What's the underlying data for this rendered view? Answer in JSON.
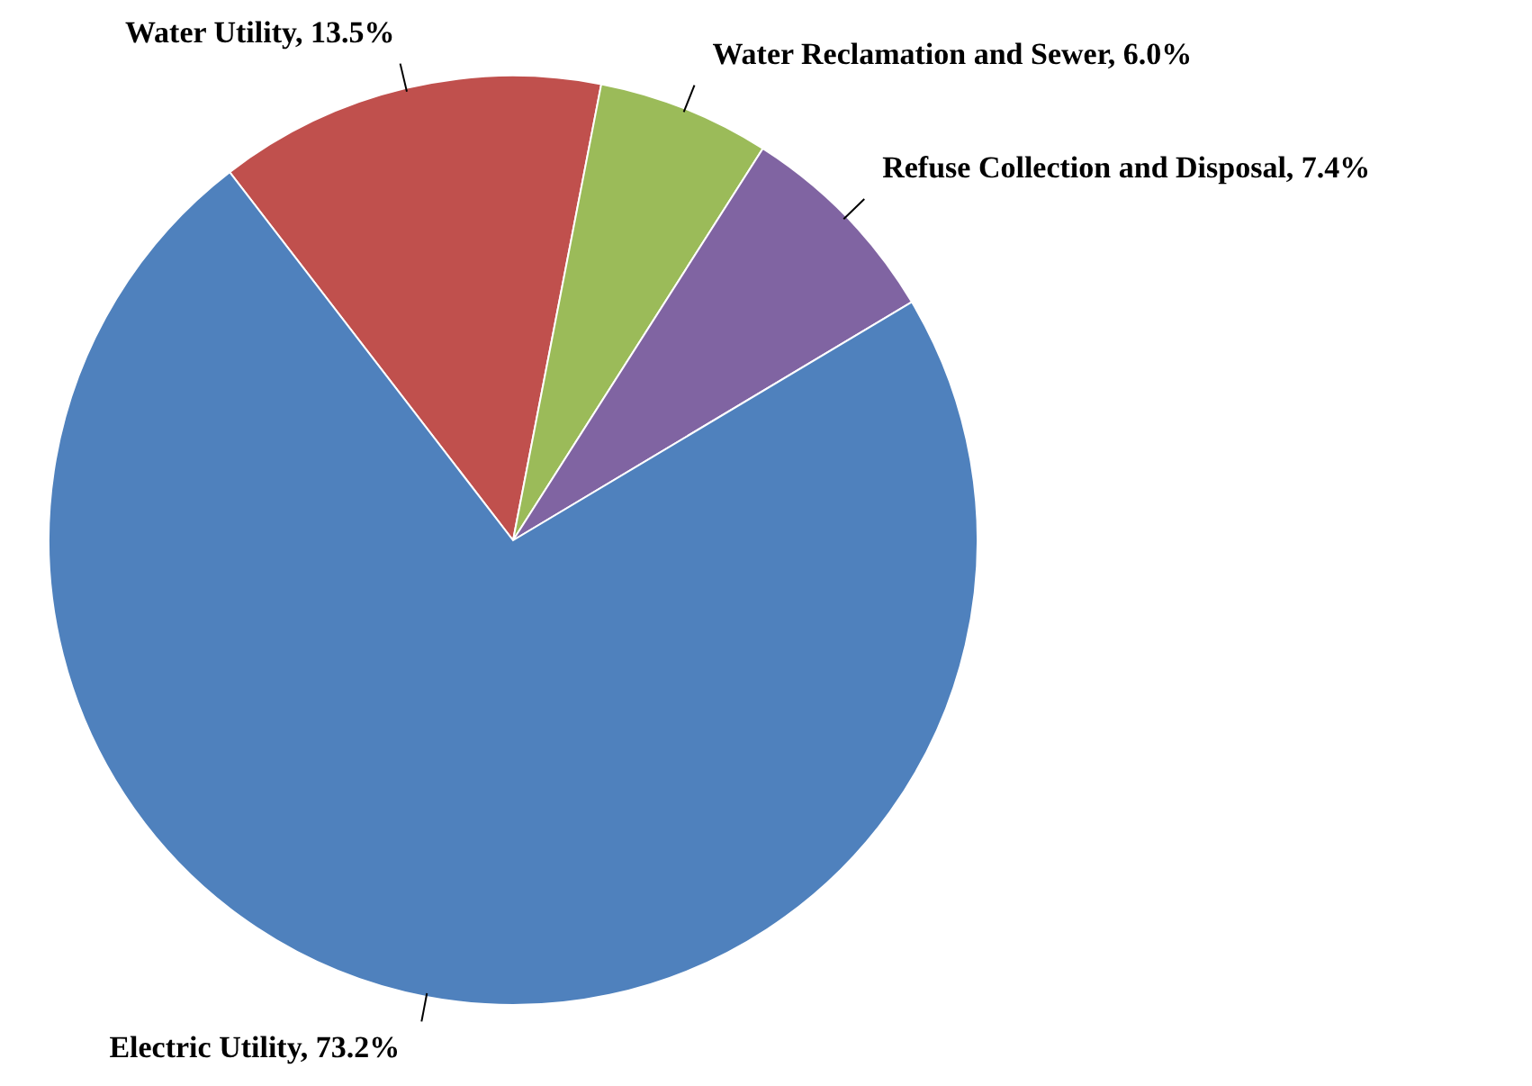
{
  "chart_data": {
    "type": "pie",
    "categories": [
      "Water Utility",
      "Water Reclamation and Sewer",
      "Refuse Collection and Disposal",
      "Electric Utility"
    ],
    "values": [
      13.5,
      6.0,
      7.4,
      73.2
    ],
    "colors": [
      "#c0504d",
      "#9bbb59",
      "#8064a2",
      "#4f81bd"
    ],
    "value_labels": [
      "13.5%",
      "6.0%",
      "7.4%",
      "73.2%"
    ]
  }
}
